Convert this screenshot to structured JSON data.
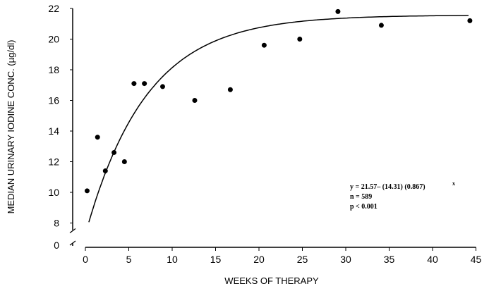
{
  "chart_data": {
    "type": "scatter",
    "title": "",
    "xlabel": "WEEKS OF THERAPY",
    "ylabel": "MEDIAN URINARY IODINE CONC. (µg/dl)",
    "xlim": [
      0,
      45
    ],
    "ylim": [
      8,
      22
    ],
    "y_axis_break": true,
    "xticks": [
      "0",
      "5",
      "10",
      "15",
      "20",
      "25",
      "30",
      "35",
      "40",
      "45"
    ],
    "yticks": [
      "8",
      "10",
      "12",
      "14",
      "16",
      "18",
      "20",
      "22"
    ],
    "ybreak_label": "0",
    "grid": false,
    "points": [
      {
        "x": 0.2,
        "y": 10.1
      },
      {
        "x": 1.4,
        "y": 13.6
      },
      {
        "x": 2.3,
        "y": 11.4
      },
      {
        "x": 3.3,
        "y": 12.6
      },
      {
        "x": 4.5,
        "y": 12.0
      },
      {
        "x": 5.6,
        "y": 17.1
      },
      {
        "x": 6.8,
        "y": 17.1
      },
      {
        "x": 8.9,
        "y": 16.9
      },
      {
        "x": 12.6,
        "y": 16.0
      },
      {
        "x": 16.7,
        "y": 16.7
      },
      {
        "x": 20.6,
        "y": 19.6
      },
      {
        "x": 24.7,
        "y": 20.0
      },
      {
        "x": 29.1,
        "y": 21.8
      },
      {
        "x": 34.1,
        "y": 20.9
      },
      {
        "x": 44.3,
        "y": 21.2
      }
    ],
    "fit": {
      "a": 21.57,
      "b": 14.31,
      "c": 0.867,
      "x_start": 0.4,
      "x_end": 44.3
    },
    "annotations": [
      "y  =  21.57– (14.31) (0.867)",
      "x",
      "n  =  589",
      "p <  0.001"
    ]
  }
}
